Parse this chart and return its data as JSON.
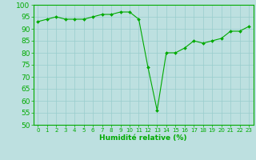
{
  "x_vals": [
    0,
    1,
    2,
    3,
    4,
    5,
    6,
    7,
    8,
    9,
    10,
    11,
    12,
    13,
    14,
    15,
    16,
    17,
    18,
    19,
    20,
    21,
    22,
    23
  ],
  "y_vals": [
    93,
    94,
    95,
    94,
    94,
    94,
    95,
    96,
    96,
    97,
    97,
    94,
    74,
    56,
    80,
    80,
    82,
    85,
    84,
    85,
    86,
    89,
    89,
    91
  ],
  "line_color": "#00aa00",
  "bg_color": "#bde0e0",
  "grid_color": "#99cccc",
  "ylim": [
    50,
    100
  ],
  "xlim": [
    -0.5,
    23.5
  ],
  "yticks": [
    50,
    55,
    60,
    65,
    70,
    75,
    80,
    85,
    90,
    95,
    100
  ],
  "xtick_labels": [
    "0",
    "1",
    "2",
    "3",
    "4",
    "5",
    "6",
    "7",
    "8",
    "9",
    "10",
    "11",
    "12",
    "13",
    "14",
    "15",
    "16",
    "17",
    "18",
    "19",
    "20",
    "21",
    "22",
    "23"
  ],
  "xlabel": "Humidité relative (%)",
  "xlabel_color": "#00aa00",
  "tick_color": "#00aa00",
  "axis_color": "#00aa00",
  "ytick_fontsize": 6.5,
  "xtick_fontsize": 5.0,
  "xlabel_fontsize": 6.5
}
